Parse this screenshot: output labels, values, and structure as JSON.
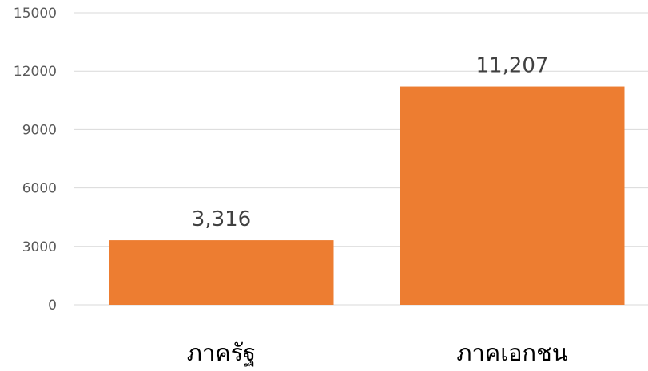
{
  "chart_data": {
    "type": "bar",
    "title": "",
    "xlabel": "",
    "ylabel": "",
    "categories": [
      "ภาครัฐ",
      "ภาคเอกชน"
    ],
    "values": [
      3316,
      11207
    ],
    "data_labels": [
      "3,316",
      "11,207"
    ],
    "ylim": [
      0,
      15000
    ],
    "yticks": [
      0,
      3000,
      6000,
      9000,
      12000,
      15000
    ],
    "ytick_labels": [
      "0",
      "3000",
      "6000",
      "9000",
      "12000",
      "15000"
    ],
    "grid": true,
    "legend": "none",
    "colors": {
      "bar": "#ED7D31",
      "grid": "#D9D9D9",
      "axis_text": "#595959",
      "data_label_text": "#404040",
      "category_text": "#000000"
    }
  }
}
